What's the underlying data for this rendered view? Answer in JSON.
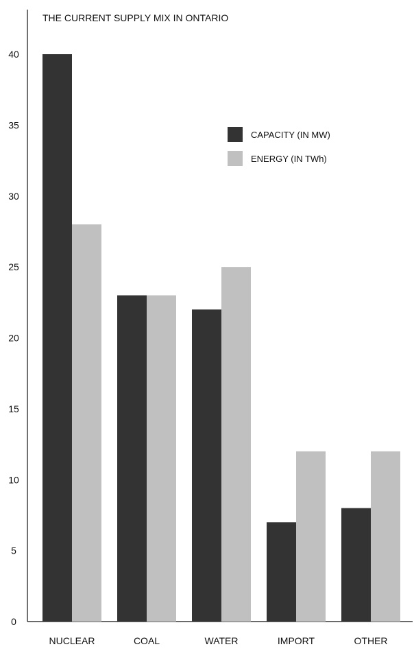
{
  "chart_data": {
    "type": "bar",
    "title": "THE CURRENT SUPPLY MIX IN ONTARIO",
    "xlabel": "",
    "ylabel": "",
    "categories": [
      "NUCLEAR",
      "COAL",
      "WATER",
      "IMPORT",
      "OTHER"
    ],
    "series": [
      {
        "name": "CAPACITY (IN MW)",
        "values": [
          40,
          23,
          22,
          7,
          8
        ],
        "color": "#333333"
      },
      {
        "name": "ENERGY (IN TWh)",
        "values": [
          28,
          23,
          25,
          12,
          12
        ],
        "color": "#c0c0c0"
      }
    ],
    "ylim": [
      0,
      43
    ],
    "yticks": [
      0,
      5,
      10,
      15,
      20,
      25,
      30,
      35,
      40
    ],
    "grid": false,
    "legend_position": "upper-right"
  }
}
